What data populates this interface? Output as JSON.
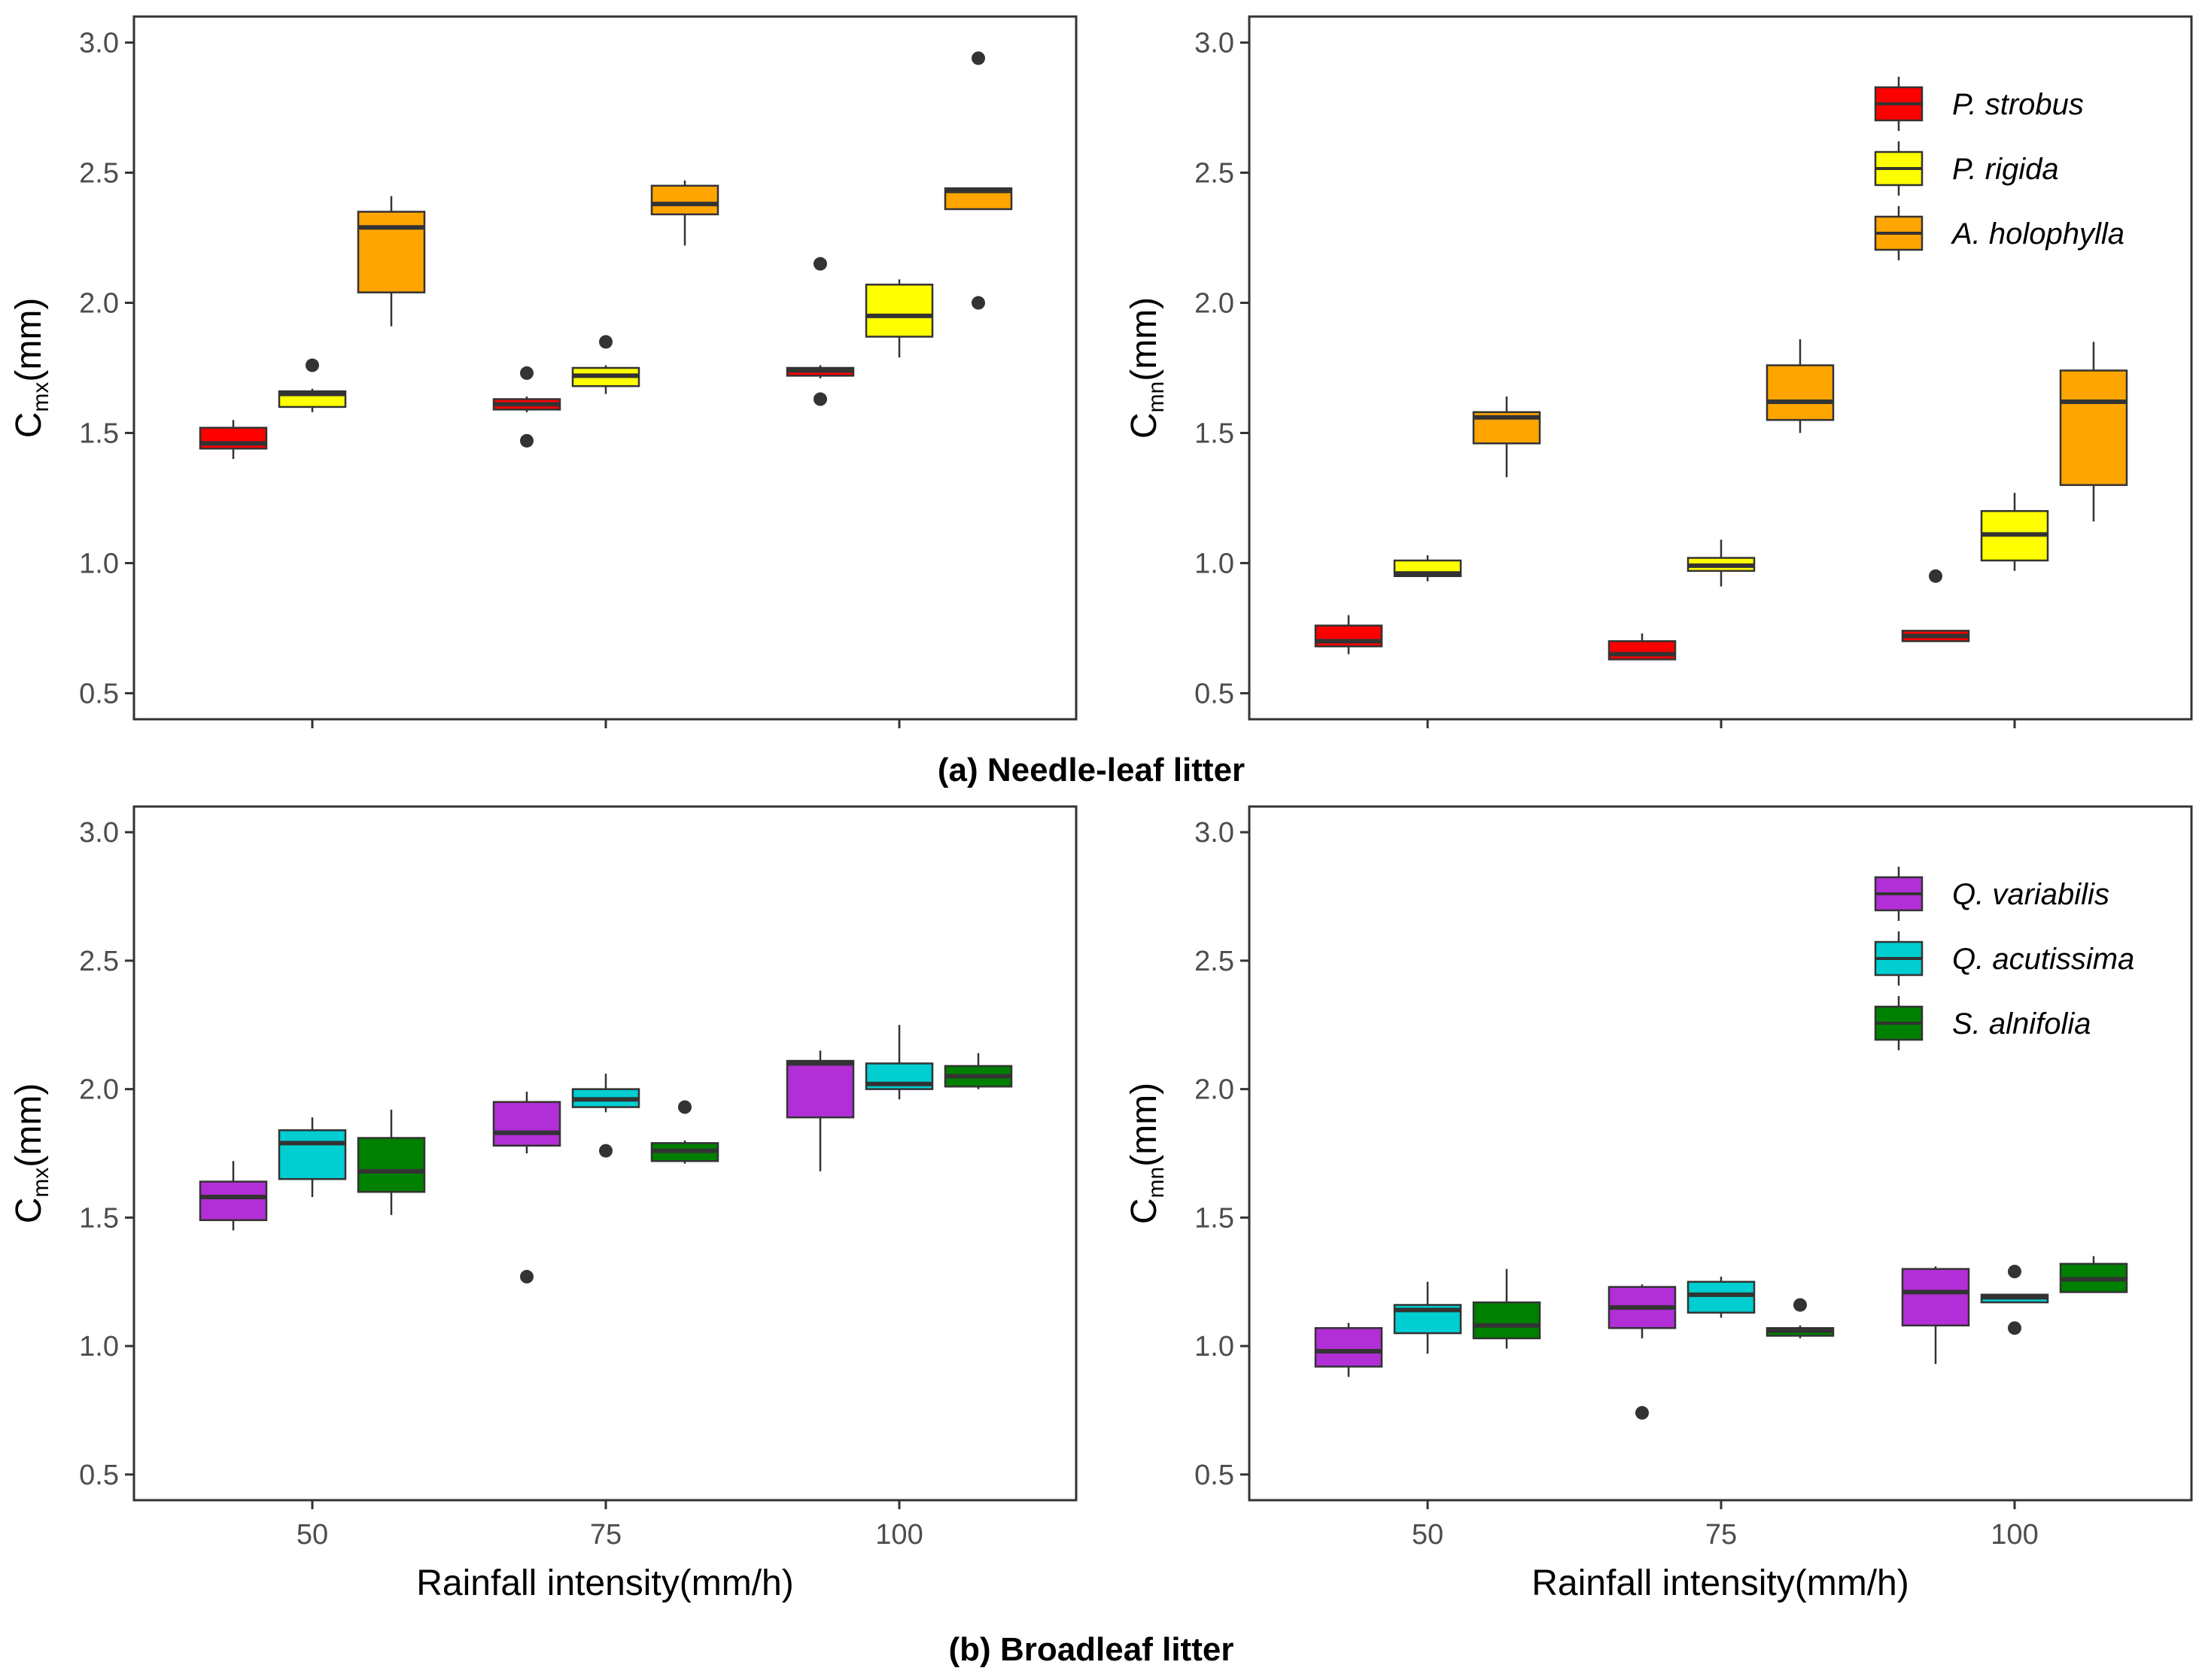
{
  "captions": {
    "needle": "(a) Needle-leaf litter",
    "broad": "(b) Broadleaf litter"
  },
  "axis_titles": {
    "x": "Rainfall intensity(mm/h)",
    "y_main": "C",
    "y_unit": "(mm)",
    "sub_max": "mx",
    "sub_min": "mn"
  },
  "chart_data": [
    {
      "type": "box",
      "name": "Needle-leaf Cmx",
      "categories": [
        "50",
        "75",
        "100"
      ],
      "ylim": [
        0.4,
        3.1
      ],
      "yticks": [
        0.5,
        1.0,
        1.5,
        2.0,
        2.5,
        3.0
      ],
      "ytick_labels": [
        "0.5",
        "1.0",
        "1.5",
        "2.0",
        "2.5",
        "3.0"
      ],
      "show_x_labels": false,
      "legend": false,
      "series": [
        {
          "name": "P. strobus",
          "color": "#ff0000",
          "boxes": [
            {
              "min": 1.4,
              "q1": 1.44,
              "median": 1.46,
              "q3": 1.52,
              "max": 1.55,
              "outliers": []
            },
            {
              "min": 1.58,
              "q1": 1.59,
              "median": 1.61,
              "q3": 1.63,
              "max": 1.64,
              "outliers": [
                1.73,
                1.47
              ]
            },
            {
              "min": 1.71,
              "q1": 1.72,
              "median": 1.74,
              "q3": 1.75,
              "max": 1.76,
              "outliers": [
                2.15,
                1.63
              ]
            }
          ]
        },
        {
          "name": "P. rigida",
          "color": "#ffff00",
          "boxes": [
            {
              "min": 1.58,
              "q1": 1.6,
              "median": 1.65,
              "q3": 1.66,
              "max": 1.67,
              "outliers": [
                1.76
              ]
            },
            {
              "min": 1.65,
              "q1": 1.68,
              "median": 1.72,
              "q3": 1.75,
              "max": 1.76,
              "outliers": [
                1.85
              ]
            },
            {
              "min": 1.79,
              "q1": 1.87,
              "median": 1.95,
              "q3": 2.07,
              "max": 2.09,
              "outliers": []
            }
          ]
        },
        {
          "name": "A. holophylla",
          "color": "#ffa500",
          "boxes": [
            {
              "min": 1.91,
              "q1": 2.04,
              "median": 2.29,
              "q3": 2.35,
              "max": 2.41,
              "outliers": []
            },
            {
              "min": 2.22,
              "q1": 2.34,
              "median": 2.38,
              "q3": 2.45,
              "max": 2.47,
              "outliers": []
            },
            {
              "min": 2.36,
              "q1": 2.36,
              "median": 2.43,
              "q3": 2.44,
              "max": 2.44,
              "outliers": [
                2.94,
                2.0
              ]
            }
          ]
        }
      ]
    },
    {
      "type": "box",
      "name": "Needle-leaf Cmn",
      "categories": [
        "50",
        "75",
        "100"
      ],
      "ylim": [
        0.4,
        3.1
      ],
      "yticks": [
        0.5,
        1.0,
        1.5,
        2.0,
        2.5,
        3.0
      ],
      "ytick_labels": [
        "0.5",
        "1.0",
        "1.5",
        "2.0",
        "2.5",
        "3.0"
      ],
      "show_x_labels": false,
      "legend": true,
      "series": [
        {
          "name": "P. strobus",
          "color": "#ff0000",
          "boxes": [
            {
              "min": 0.65,
              "q1": 0.68,
              "median": 0.7,
              "q3": 0.76,
              "max": 0.8,
              "outliers": []
            },
            {
              "min": 0.63,
              "q1": 0.63,
              "median": 0.65,
              "q3": 0.7,
              "max": 0.73,
              "outliers": []
            },
            {
              "min": 0.7,
              "q1": 0.7,
              "median": 0.72,
              "q3": 0.74,
              "max": 0.74,
              "outliers": [
                0.95
              ]
            }
          ]
        },
        {
          "name": "P. rigida",
          "color": "#ffff00",
          "boxes": [
            {
              "min": 0.93,
              "q1": 0.95,
              "median": 0.96,
              "q3": 1.01,
              "max": 1.03,
              "outliers": []
            },
            {
              "min": 0.91,
              "q1": 0.97,
              "median": 0.99,
              "q3": 1.02,
              "max": 1.09,
              "outliers": []
            },
            {
              "min": 0.97,
              "q1": 1.01,
              "median": 1.11,
              "q3": 1.2,
              "max": 1.27,
              "outliers": []
            }
          ]
        },
        {
          "name": "A. holophylla",
          "color": "#ffa500",
          "boxes": [
            {
              "min": 1.33,
              "q1": 1.46,
              "median": 1.56,
              "q3": 1.58,
              "max": 1.64,
              "outliers": []
            },
            {
              "min": 1.5,
              "q1": 1.55,
              "median": 1.62,
              "q3": 1.76,
              "max": 1.86,
              "outliers": []
            },
            {
              "min": 1.16,
              "q1": 1.3,
              "median": 1.62,
              "q3": 1.74,
              "max": 1.85,
              "outliers": []
            }
          ]
        }
      ]
    },
    {
      "type": "box",
      "name": "Broadleaf Cmx",
      "categories": [
        "50",
        "75",
        "100"
      ],
      "ylim": [
        0.4,
        3.1
      ],
      "yticks": [
        0.5,
        1.0,
        1.5,
        2.0,
        2.5,
        3.0
      ],
      "ytick_labels": [
        "0.5",
        "1.0",
        "1.5",
        "2.0",
        "2.5",
        "3.0"
      ],
      "show_x_labels": true,
      "legend": false,
      "series": [
        {
          "name": "Q. variabilis",
          "color": "#b22ed6",
          "boxes": [
            {
              "min": 1.45,
              "q1": 1.49,
              "median": 1.58,
              "q3": 1.64,
              "max": 1.72,
              "outliers": []
            },
            {
              "min": 1.75,
              "q1": 1.78,
              "median": 1.83,
              "q3": 1.95,
              "max": 1.99,
              "outliers": [
                1.27
              ]
            },
            {
              "min": 1.68,
              "q1": 1.89,
              "median": 2.1,
              "q3": 2.11,
              "max": 2.15,
              "outliers": []
            }
          ]
        },
        {
          "name": "Q. acutissima",
          "color": "#00ced1",
          "boxes": [
            {
              "min": 1.58,
              "q1": 1.65,
              "median": 1.79,
              "q3": 1.84,
              "max": 1.89,
              "outliers": []
            },
            {
              "min": 1.91,
              "q1": 1.93,
              "median": 1.96,
              "q3": 2.0,
              "max": 2.06,
              "outliers": [
                1.76
              ]
            },
            {
              "min": 1.96,
              "q1": 2.0,
              "median": 2.02,
              "q3": 2.1,
              "max": 2.25,
              "outliers": []
            }
          ]
        },
        {
          "name": "S. alnifolia",
          "color": "#008000",
          "boxes": [
            {
              "min": 1.51,
              "q1": 1.6,
              "median": 1.68,
              "q3": 1.81,
              "max": 1.92,
              "outliers": []
            },
            {
              "min": 1.71,
              "q1": 1.72,
              "median": 1.76,
              "q3": 1.79,
              "max": 1.8,
              "outliers": [
                1.93
              ]
            },
            {
              "min": 2.0,
              "q1": 2.01,
              "median": 2.05,
              "q3": 2.09,
              "max": 2.14,
              "outliers": []
            }
          ]
        }
      ]
    },
    {
      "type": "box",
      "name": "Broadleaf Cmn",
      "categories": [
        "50",
        "75",
        "100"
      ],
      "ylim": [
        0.4,
        3.1
      ],
      "yticks": [
        0.5,
        1.0,
        1.5,
        2.0,
        2.5,
        3.0
      ],
      "ytick_labels": [
        "0.5",
        "1.0",
        "1.5",
        "2.0",
        "2.5",
        "3.0"
      ],
      "show_x_labels": true,
      "legend": true,
      "series": [
        {
          "name": "Q. variabilis",
          "color": "#b22ed6",
          "boxes": [
            {
              "min": 0.88,
              "q1": 0.92,
              "median": 0.98,
              "q3": 1.07,
              "max": 1.09,
              "outliers": []
            },
            {
              "min": 1.03,
              "q1": 1.07,
              "median": 1.15,
              "q3": 1.23,
              "max": 1.24,
              "outliers": [
                0.74
              ]
            },
            {
              "min": 0.93,
              "q1": 1.08,
              "median": 1.21,
              "q3": 1.3,
              "max": 1.31,
              "outliers": []
            }
          ]
        },
        {
          "name": "Q. acutissima",
          "color": "#00ced1",
          "boxes": [
            {
              "min": 0.97,
              "q1": 1.05,
              "median": 1.14,
              "q3": 1.16,
              "max": 1.25,
              "outliers": []
            },
            {
              "min": 1.11,
              "q1": 1.13,
              "median": 1.2,
              "q3": 1.25,
              "max": 1.27,
              "outliers": []
            },
            {
              "min": 1.17,
              "q1": 1.17,
              "median": 1.19,
              "q3": 1.2,
              "max": 1.2,
              "outliers": [
                1.29,
                1.07
              ]
            }
          ]
        },
        {
          "name": "S. alnifolia",
          "color": "#008000",
          "boxes": [
            {
              "min": 0.99,
              "q1": 1.03,
              "median": 1.08,
              "q3": 1.17,
              "max": 1.3,
              "outliers": []
            },
            {
              "min": 1.03,
              "q1": 1.04,
              "median": 1.06,
              "q3": 1.07,
              "max": 1.08,
              "outliers": [
                1.16
              ]
            },
            {
              "min": 1.21,
              "q1": 1.21,
              "median": 1.26,
              "q3": 1.32,
              "max": 1.35,
              "outliers": []
            }
          ]
        }
      ]
    }
  ]
}
